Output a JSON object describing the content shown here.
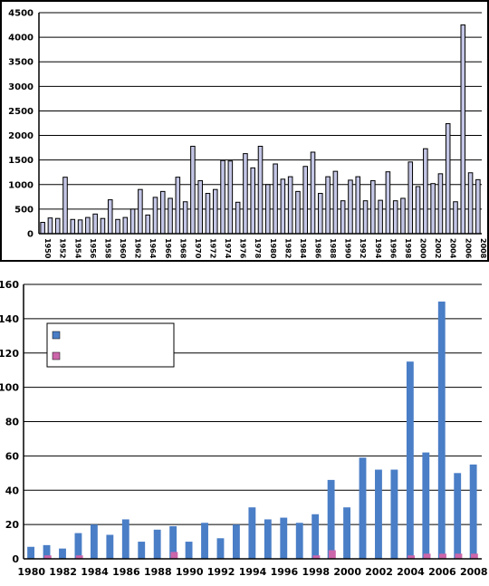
{
  "chart_data": [
    {
      "type": "bar",
      "title": "",
      "xlabel": "",
      "ylabel": "",
      "ylim": [
        0,
        4500
      ],
      "yticks": [
        0,
        500,
        1000,
        1500,
        2000,
        2500,
        3000,
        3500,
        4000,
        4500
      ],
      "grid": "horizontal",
      "categories": [
        "1950",
        "1951",
        "1952",
        "1953",
        "1954",
        "1955",
        "1956",
        "1957",
        "1958",
        "1959",
        "1960",
        "1961",
        "1962",
        "1963",
        "1964",
        "1965",
        "1966",
        "1967",
        "1968",
        "1969",
        "1970",
        "1971",
        "1972",
        "1973",
        "1974",
        "1975",
        "1976",
        "1977",
        "1978",
        "1979",
        "1980",
        "1981",
        "1982",
        "1983",
        "1984",
        "1985",
        "1986",
        "1987",
        "1988",
        "1989",
        "1990",
        "1991",
        "1992",
        "1993",
        "1994",
        "1995",
        "1996",
        "1997",
        "1998",
        "1999",
        "2000",
        "2001",
        "2002",
        "2003",
        "2004",
        "2005",
        "2006",
        "2007",
        "2008"
      ],
      "x_tick_labels": [
        "1950",
        "1952",
        "1954",
        "1956",
        "1958",
        "1960",
        "1962",
        "1964",
        "1966",
        "1968",
        "1970",
        "1972",
        "1974",
        "1976",
        "1978",
        "1980",
        "1982",
        "1984",
        "1986",
        "1988",
        "1990",
        "1992",
        "1994",
        "1996",
        "1998",
        "2000",
        "2002",
        "2004",
        "2006",
        "2008"
      ],
      "values": [
        230,
        320,
        310,
        1150,
        290,
        280,
        330,
        400,
        310,
        690,
        290,
        330,
        500,
        900,
        380,
        740,
        860,
        720,
        1150,
        650,
        1780,
        1080,
        820,
        900,
        1490,
        1480,
        640,
        1630,
        1340,
        1780,
        1000,
        1420,
        1110,
        1160,
        860,
        1370,
        1660,
        820,
        1160,
        1270,
        670,
        1090,
        1160,
        670,
        1080,
        680,
        1260,
        670,
        720,
        1460,
        960,
        1730,
        1020,
        1220,
        2240,
        650,
        4250,
        1240,
        1100
      ],
      "bar_color": "#c4c6e6",
      "bar_stroke": "#000000"
    },
    {
      "type": "bar",
      "title": "",
      "xlabel": "",
      "ylabel": "",
      "ylim": [
        0,
        160
      ],
      "yticks": [
        0,
        20,
        40,
        60,
        80,
        100,
        120,
        140,
        160
      ],
      "grid": "horizontal",
      "legend": "top-left",
      "categories": [
        "1980",
        "1981",
        "1982",
        "1983",
        "1984",
        "1985",
        "1986",
        "1987",
        "1988",
        "1989",
        "1990",
        "1991",
        "1992",
        "1993",
        "1994",
        "1995",
        "1996",
        "1997",
        "1998",
        "1999",
        "2000",
        "2001",
        "2002",
        "2003",
        "2004",
        "2005",
        "2006",
        "2007",
        "2008"
      ],
      "x_tick_labels": [
        "1980",
        "1982",
        "1984",
        "1986",
        "1988",
        "1990",
        "1992",
        "1994",
        "1996",
        "1998",
        "2000",
        "2002",
        "2004",
        "2006",
        "2008"
      ],
      "series": [
        {
          "color": "#4a7ec6",
          "values": [
            7,
            8,
            6,
            15,
            20,
            14,
            23,
            10,
            17,
            19,
            10,
            21,
            12,
            20,
            30,
            23,
            24,
            21,
            26,
            46,
            30,
            59,
            52,
            52,
            115,
            62,
            150,
            50,
            55
          ]
        },
        {
          "color": "#cc66aa",
          "values": [
            0,
            2,
            0,
            2,
            0,
            0,
            0,
            0,
            0,
            4,
            0,
            0,
            0,
            0,
            0,
            0,
            0,
            0,
            2,
            5,
            0,
            0,
            0,
            0,
            2,
            3,
            3,
            3,
            3
          ]
        }
      ]
    }
  ]
}
